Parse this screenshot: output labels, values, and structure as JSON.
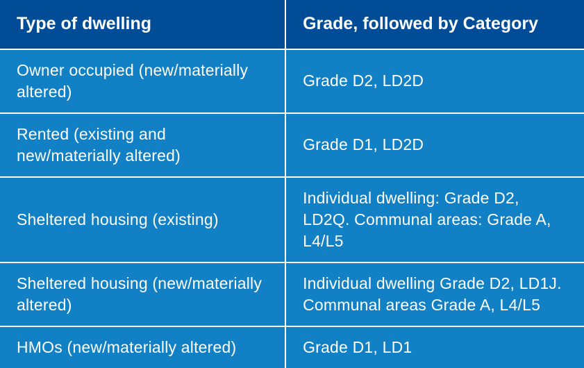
{
  "table": {
    "type": "table",
    "header_bg": "#004C97",
    "body_bg": "#1280C4",
    "text_color": "#ffffff",
    "border_color": "#ffffff",
    "header_fontsize": 25,
    "body_fontsize": 23,
    "small_fontsize": 19,
    "columns": [
      {
        "label": "Type of dwelling",
        "width_pct": 49
      },
      {
        "label": "Grade, followed by Category",
        "width_pct": 51
      }
    ],
    "rows": [
      {
        "dwelling": "Owner occupied (new/materially altered)",
        "grade": "Grade D2, LD2D",
        "grade_small": false
      },
      {
        "dwelling": "Rented (existing and new/materially altered)",
        "grade": "Grade D1, LD2D",
        "grade_small": false
      },
      {
        "dwelling": "Sheltered housing (existing)",
        "grade": "Individual dwelling: Grade D2, LD2Q. Communal areas: Grade A, L4/L5",
        "grade_small": true
      },
      {
        "dwelling": "Sheltered housing (new/materially altered)",
        "grade": "Individual dwelling Grade D2, LD1J. Communal areas Grade A, L4/L5",
        "grade_small": true
      },
      {
        "dwelling": "HMOs (new/materially altered)",
        "grade": "Grade D1, LD1",
        "grade_small": false
      }
    ]
  }
}
